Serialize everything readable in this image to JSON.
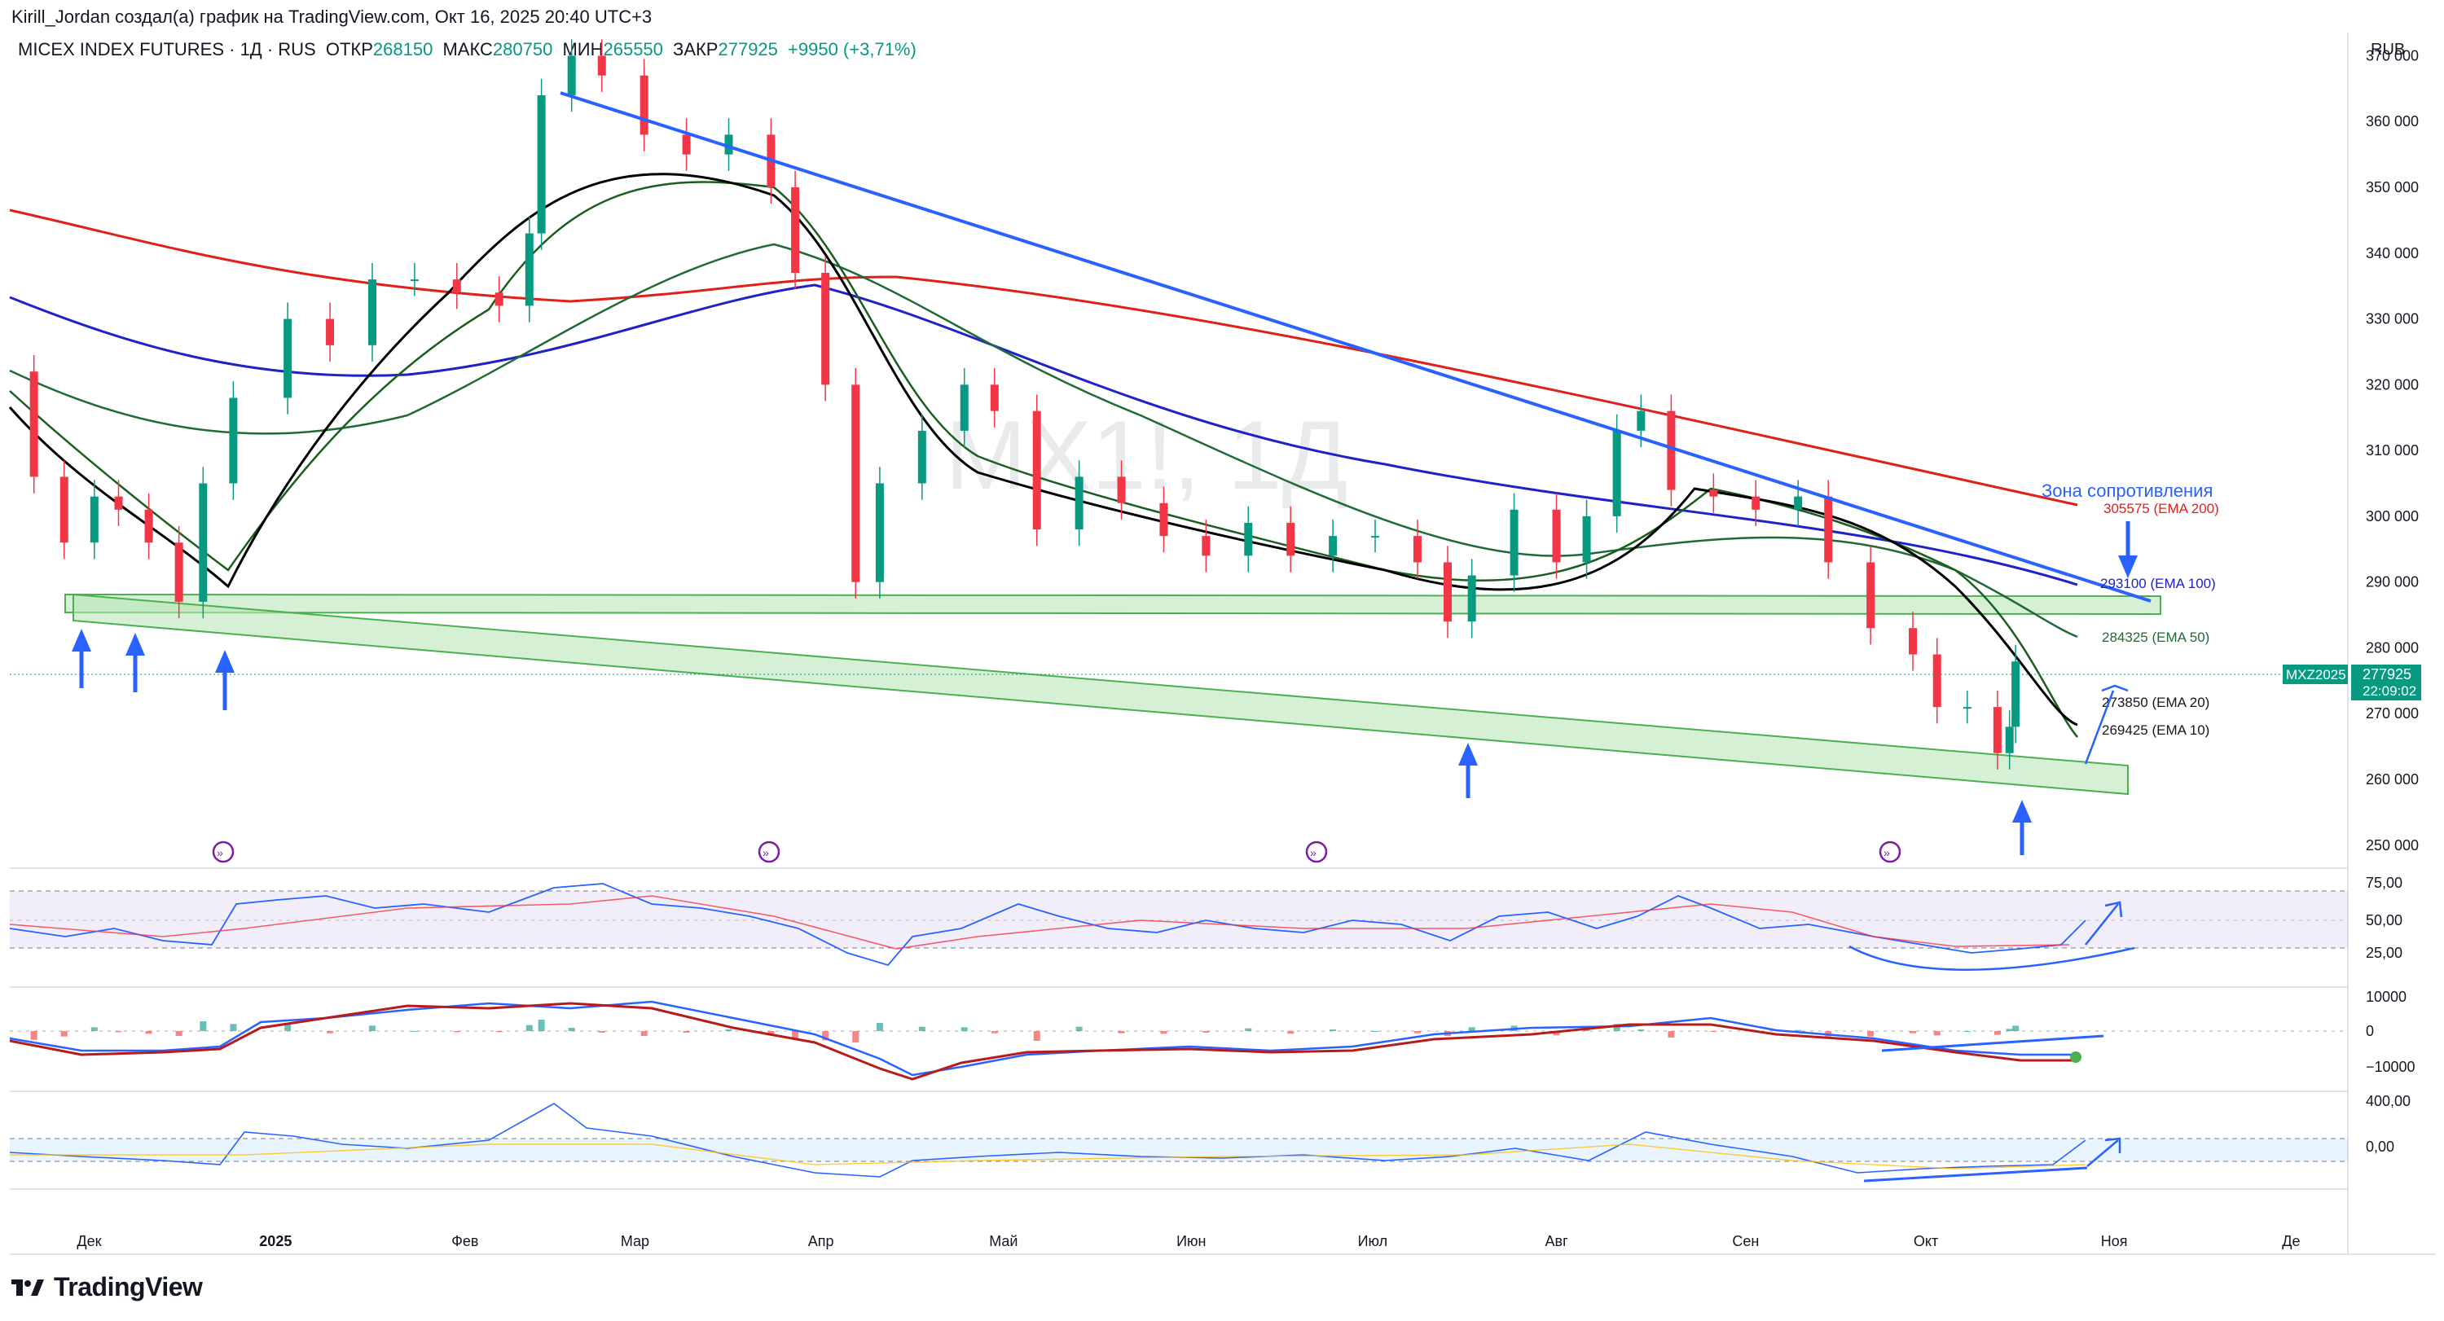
{
  "header": {
    "credit": "Kirill_Jordan создал(а) график на TradingView.com, Окт 16, 2025 20:40 UTC+3"
  },
  "symbol": {
    "name": "MICEX INDEX FUTURES · 1Д · RUS",
    "open_label": "ОТКР",
    "open": "268150",
    "high_label": "МАКС",
    "high": "280750",
    "low_label": "МИН",
    "low": "265550",
    "close_label": "ЗАКР",
    "close": "277925",
    "change": "+9950 (+3,71%)"
  },
  "currency": "RUB",
  "watermark": "MX1!, 1Д",
  "price_axis": {
    "ticks": [
      "370 000",
      "360 000",
      "350 000",
      "340 000",
      "330 000",
      "320 000",
      "310 000",
      "300 000",
      "290 000",
      "280 000",
      "270 000",
      "260 000",
      "250 000"
    ]
  },
  "time_axis": {
    "ticks": [
      "Дек",
      "2025",
      "Фев",
      "Мар",
      "Апр",
      "Май",
      "Июн",
      "Июл",
      "Авг",
      "Сен",
      "Окт",
      "Ноя",
      "Де"
    ]
  },
  "annotations": {
    "resistance_zone": "Зона сопротивления",
    "ema200": "305575 (EMA 200)",
    "ema100": "293100 (EMA 100)",
    "ema50": "284325 (EMA 50)",
    "ema20": "273850 (EMA 20)",
    "ema10": "269425 (EMA 10)",
    "ticker_tag": "MXZ2025",
    "price_tag": "277925",
    "timer_tag": "22:09:02"
  },
  "indicator_axes": {
    "rsi": [
      "75,00",
      "50,00",
      "25,00"
    ],
    "macd": [
      "10000",
      "0",
      "−10000"
    ],
    "cci": [
      "400,00",
      "0,00"
    ]
  },
  "branding": {
    "logo_text": "TradingView"
  },
  "colors": {
    "up": "#089981",
    "down": "#f23645",
    "ema10": "#000000",
    "ema20": "#1b5e20",
    "ema50": "#2e7d32",
    "ema100": "#1e22c8",
    "ema200": "#e0201b",
    "trend": "#2962ff",
    "zone_fill": "#b9e6b9",
    "zone_stroke": "#4caf50"
  },
  "chart_data": {
    "type": "candlestick",
    "interval": "1Д",
    "y_range": [
      247000,
      376000
    ],
    "x_range": [
      "2024-11-18",
      "2025-12-10"
    ],
    "candles_close": [
      [
        "2024-11-18",
        322000
      ],
      [
        "2024-11-22",
        306000
      ],
      [
        "2024-11-27",
        296000
      ],
      [
        "2024-12-02",
        303000
      ],
      [
        "2024-12-06",
        301000
      ],
      [
        "2024-12-11",
        296000
      ],
      [
        "2024-12-16",
        287000
      ],
      [
        "2024-12-20",
        305000
      ],
      [
        "2024-12-25",
        318000
      ],
      [
        "2025-01-03",
        330000
      ],
      [
        "2025-01-10",
        326000
      ],
      [
        "2025-01-17",
        336000
      ],
      [
        "2025-01-24",
        336000
      ],
      [
        "2025-01-31",
        334000
      ],
      [
        "2025-02-07",
        332000
      ],
      [
        "2025-02-12",
        343000
      ],
      [
        "2025-02-14",
        364000
      ],
      [
        "2025-02-19",
        370000
      ],
      [
        "2025-02-24",
        367000
      ],
      [
        "2025-03-03",
        358000
      ],
      [
        "2025-03-10",
        355000
      ],
      [
        "2025-03-17",
        358000
      ],
      [
        "2025-03-24",
        350000
      ],
      [
        "2025-03-28",
        337000
      ],
      [
        "2025-04-02",
        320000
      ],
      [
        "2025-04-07",
        290000
      ],
      [
        "2025-04-11",
        305000
      ],
      [
        "2025-04-18",
        313000
      ],
      [
        "2025-04-25",
        320000
      ],
      [
        "2025-04-30",
        316000
      ],
      [
        "2025-05-07",
        298000
      ],
      [
        "2025-05-14",
        306000
      ],
      [
        "2025-05-21",
        302000
      ],
      [
        "2025-05-28",
        297000
      ],
      [
        "2025-06-04",
        294000
      ],
      [
        "2025-06-11",
        299000
      ],
      [
        "2025-06-18",
        294000
      ],
      [
        "2025-06-25",
        297000
      ],
      [
        "2025-07-02",
        297000
      ],
      [
        "2025-07-09",
        293000
      ],
      [
        "2025-07-14",
        284000
      ],
      [
        "2025-07-18",
        291000
      ],
      [
        "2025-07-25",
        301000
      ],
      [
        "2025-08-01",
        293000
      ],
      [
        "2025-08-06",
        300000
      ],
      [
        "2025-08-11",
        313000
      ],
      [
        "2025-08-15",
        316000
      ],
      [
        "2025-08-20",
        304000
      ],
      [
        "2025-08-27",
        303000
      ],
      [
        "2025-09-03",
        301000
      ],
      [
        "2025-09-10",
        303000
      ],
      [
        "2025-09-15",
        293000
      ],
      [
        "2025-09-22",
        283000
      ],
      [
        "2025-09-29",
        279000
      ],
      [
        "2025-10-03",
        271000
      ],
      [
        "2025-10-08",
        271000
      ],
      [
        "2025-10-13",
        264000
      ],
      [
        "2025-10-15",
        268000
      ],
      [
        "2025-10-16",
        277925
      ]
    ],
    "ema": [
      {
        "name": "EMA 10",
        "last": 269425
      },
      {
        "name": "EMA 20",
        "last": 273850
      },
      {
        "name": "EMA 50",
        "last": 284325
      },
      {
        "name": "EMA 100",
        "last": 293100
      },
      {
        "name": "EMA 200",
        "last": 305575
      }
    ]
  }
}
